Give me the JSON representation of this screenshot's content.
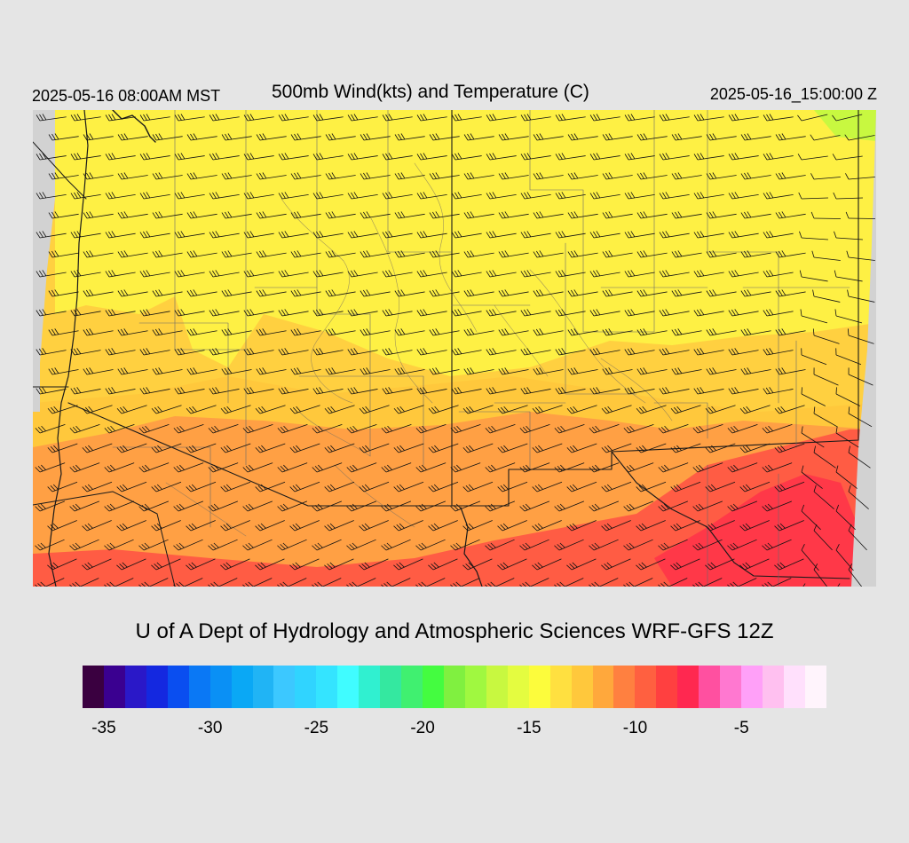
{
  "header": {
    "local_time": "2025-05-16 08:00AM MST",
    "title": "500mb Wind(kts) and Temperature (C)",
    "valid_time": "2025-05-16_15:00:00 Z"
  },
  "credit": "U of A Dept of Hydrology and Atmospheric Sciences WRF-GFS 12Z",
  "colorbar": {
    "colors": [
      "#3a0040",
      "#3a0090",
      "#2a18c8",
      "#1428e0",
      "#0a4ef0",
      "#0a78f5",
      "#0a90f5",
      "#0aa8f5",
      "#20b4f5",
      "#3cc8ff",
      "#30d4ff",
      "#34e4ff",
      "#40fcff",
      "#30f0d0",
      "#34e8a0",
      "#40f070",
      "#44fc40",
      "#80f040",
      "#a0f840",
      "#c8f840",
      "#e4fc40",
      "#fcfc3c",
      "#ffe040",
      "#ffc83c",
      "#ffa83c",
      "#ff8040",
      "#ff6040",
      "#ff4040",
      "#ff2850",
      "#ff50a0",
      "#ff78d0",
      "#ffa0f8",
      "#ffc0f0",
      "#ffe0fc",
      "#fff4fc"
    ],
    "tick_labels": [
      "-35",
      "-30",
      "-25",
      "-20",
      "-15",
      "-10",
      "-5"
    ],
    "tick_values": [
      -35,
      -30,
      -25,
      -20,
      -15,
      -10,
      -5
    ],
    "min": -36,
    "max": -1
  },
  "map": {
    "field": "500mb temperature (C) with wind barbs (kts)",
    "temperature_range": [
      -16,
      -7
    ],
    "colors": {
      "cold": "#fef044",
      "mid": "#ffc83c",
      "warm": "#ffa044",
      "hot": "#ff5c44",
      "hottest": "#ff3848",
      "green_edge": "#c8f840",
      "nodata": "#d2d2d2"
    }
  }
}
